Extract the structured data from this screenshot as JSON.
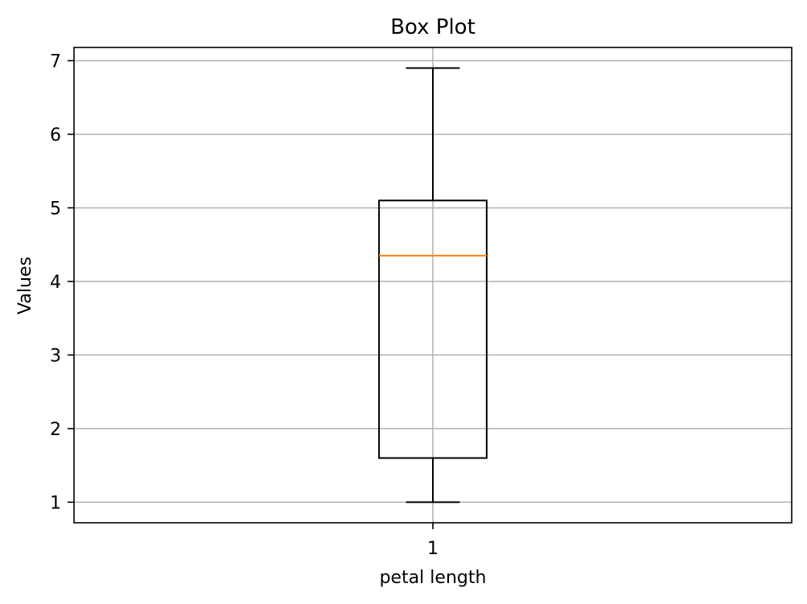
{
  "chart_data": {
    "type": "box",
    "title": "Box Plot",
    "xlabel": "petal length",
    "ylabel": "Values",
    "categories": [
      "1"
    ],
    "boxes": [
      {
        "category": "1",
        "whisker_low": 1.0,
        "q1": 1.6,
        "median": 4.35,
        "q3": 5.1,
        "whisker_high": 6.9
      }
    ],
    "ylim": [
      0.72,
      7.18
    ],
    "xlim": [
      0.5,
      1.5
    ],
    "yticks": [
      1,
      2,
      3,
      4,
      5,
      6,
      7
    ],
    "grid": true,
    "colors": {
      "box": "#000000",
      "median": "#ff7f0e",
      "grid": "#b0b0b0",
      "axes": "#000000"
    }
  }
}
